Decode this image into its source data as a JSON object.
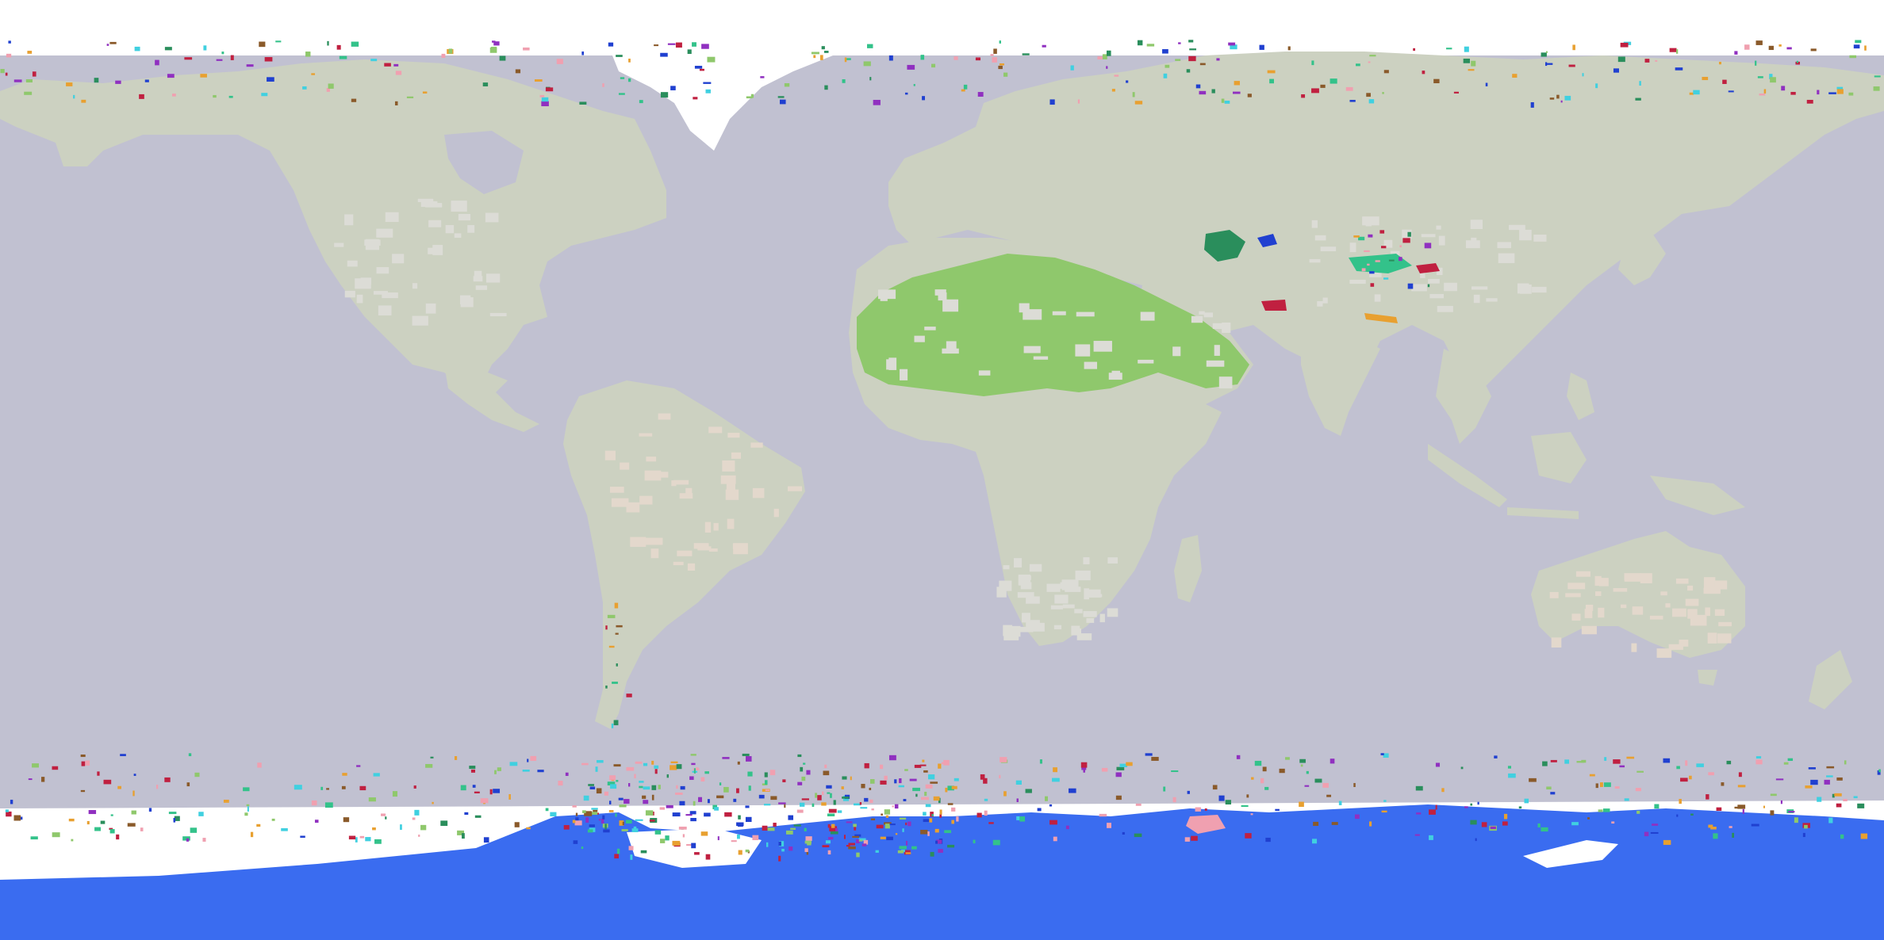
{
  "map": {
    "projection": "equirectangular",
    "colors": {
      "ocean": "#c1c1d1",
      "land": "#ccd1c1",
      "land_light": "#dcdcd6",
      "land_warm": "#e3d8cc",
      "ice": "#ffffff",
      "antarctic_cluster": "#3a6cf0",
      "sahara_cluster": "#8fc86c",
      "central_asia_teal": "#33c28a",
      "central_asia_green": "#2a8e5c",
      "accent_red": "#c02040",
      "accent_orange": "#e8a030",
      "accent_blue": "#2040d0",
      "accent_pink": "#f0a0b0",
      "accent_brown": "#8a5a2a",
      "accent_cyan": "#40d0e0",
      "accent_purple": "#9030c0"
    },
    "labels": []
  }
}
